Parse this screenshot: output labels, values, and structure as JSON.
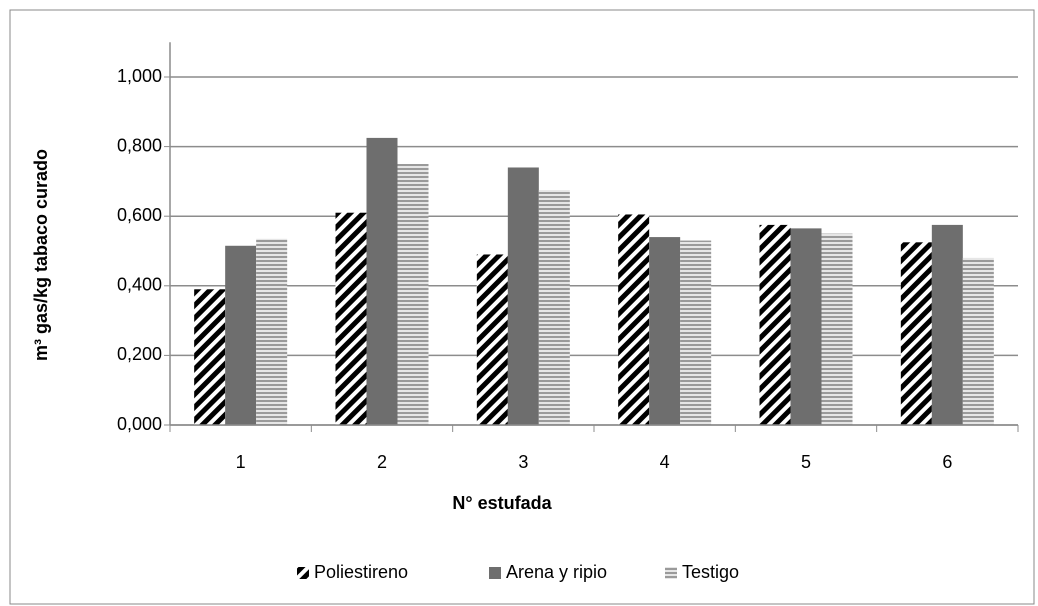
{
  "chart_data": {
    "type": "bar",
    "y_label": "m³ gas/kg tabaco curado",
    "x_label": "N° estufada",
    "categories": [
      "1",
      "2",
      "3",
      "4",
      "5",
      "6"
    ],
    "series": [
      {
        "name": "Poliestireno",
        "color": "#000000",
        "pattern": "diagonal",
        "values": [
          0.39,
          0.61,
          0.49,
          0.605,
          0.575,
          0.525
        ]
      },
      {
        "name": "Arena y ripio",
        "color": "#6e6e6e",
        "pattern": "solid",
        "values": [
          0.515,
          0.825,
          0.74,
          0.54,
          0.565,
          0.575
        ]
      },
      {
        "name": "Testigo",
        "color": "#9a9a9a",
        "pattern": "horizontal",
        "values": [
          0.535,
          0.75,
          0.675,
          0.53,
          0.55,
          0.48
        ]
      }
    ],
    "ylim": [
      0,
      1.1
    ],
    "yticks": [
      {
        "value": 0,
        "label": "0,000"
      },
      {
        "value": 0.2,
        "label": "0,200"
      },
      {
        "value": 0.4,
        "label": "0,400"
      },
      {
        "value": 0.6,
        "label": "0,600"
      },
      {
        "value": 0.8,
        "label": "0,800"
      },
      {
        "value": 1,
        "label": "1,000"
      }
    ],
    "grid": true,
    "legend": "bottom"
  }
}
